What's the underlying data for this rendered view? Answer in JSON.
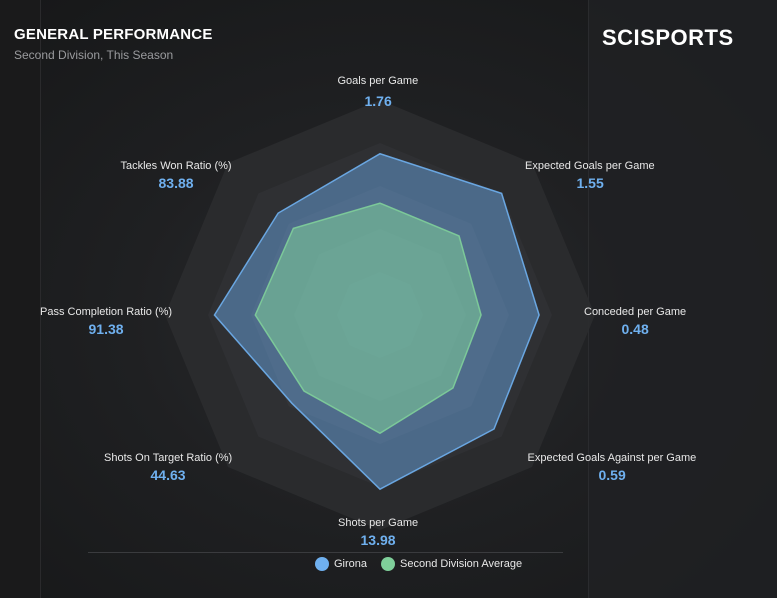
{
  "header": {
    "title": "GENERAL PERFORMANCE",
    "subtitle": "Second Division, This Season",
    "logo_text": "SCISPORTS"
  },
  "colors": {
    "series_girona": "#6fb0ef",
    "series_average": "#7fcf9a",
    "value_text": "#6fb0ef"
  },
  "chart_data": {
    "type": "radar",
    "title": "GENERAL PERFORMANCE",
    "subtitle": "Second Division, This Season",
    "axes": [
      {
        "label": "Goals per Game",
        "value": "1.76"
      },
      {
        "label": "Expected Goals per Game",
        "value": "1.55"
      },
      {
        "label": "Conceded per Game",
        "value": "0.48"
      },
      {
        "label": "Expected Goals Against per Game",
        "value": "0.59"
      },
      {
        "label": "Shots per Game",
        "value": "13.98"
      },
      {
        "label": "Shots On Target Ratio (%)",
        "value": "44.63"
      },
      {
        "label": "Pass Completion Ratio (%)",
        "value": "91.38"
      },
      {
        "label": "Tackles Won Ratio (%)",
        "value": "83.88"
      }
    ],
    "series": [
      {
        "name": "Girona",
        "values": [
          0.75,
          0.8,
          0.74,
          0.75,
          0.81,
          0.58,
          0.77,
          0.67
        ]
      },
      {
        "name": "Second Division Average",
        "values": [
          0.52,
          0.52,
          0.47,
          0.48,
          0.55,
          0.5,
          0.58,
          0.57
        ]
      }
    ],
    "rings": 5,
    "legend": {
      "position": "bottom",
      "entries": [
        "Girona",
        "Second Division Average"
      ]
    }
  }
}
